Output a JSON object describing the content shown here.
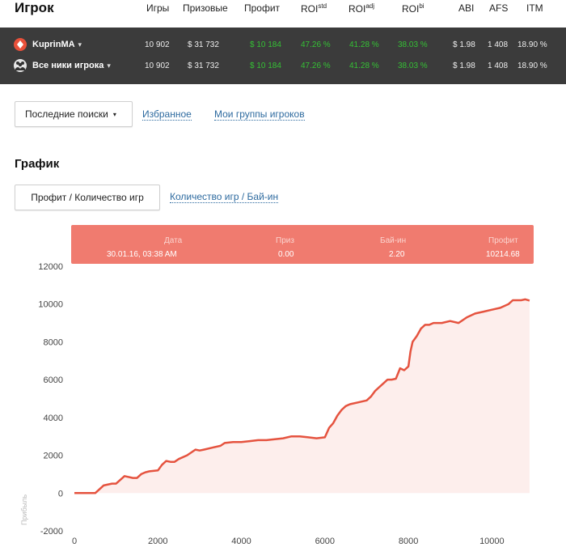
{
  "header": {
    "title": "Игрок",
    "columns": [
      {
        "label": "Игры",
        "sup": ""
      },
      {
        "label": "Призовые",
        "sup": ""
      },
      {
        "label": "Профит",
        "sup": ""
      },
      {
        "label": "ROI",
        "sup": "std"
      },
      {
        "label": "ROI",
        "sup": "adj"
      },
      {
        "label": "ROI",
        "sup": "bi"
      },
      {
        "label": "ABI",
        "sup": ""
      },
      {
        "label": "AFS",
        "sup": ""
      },
      {
        "label": "ITM",
        "sup": ""
      }
    ]
  },
  "rows": [
    {
      "name": "KuprinMA",
      "icon": "poker-icon",
      "games": "10 902",
      "prizes": "$ 31 732",
      "profit": "$ 10 184",
      "roi_std": "47.26 %",
      "roi_adj": "41.28 %",
      "roi_bi": "38.03 %",
      "abi": "$ 1.98",
      "afs": "1 408",
      "itm": "18.90 %"
    },
    {
      "name": "Все ники игрока",
      "icon": "group-icon",
      "games": "10 902",
      "prizes": "$ 31 732",
      "profit": "$ 10 184",
      "roi_std": "47.26 %",
      "roi_adj": "41.28 %",
      "roi_bi": "38.03 %",
      "abi": "$ 1.98",
      "afs": "1 408",
      "itm": "18.90 %"
    }
  ],
  "caret": "▾",
  "nav": {
    "recent": "Последние поиски",
    "favorites": "Избранное",
    "groups": "Мои группы игроков"
  },
  "graph": {
    "title": "График",
    "tab_active": "Профит / Количество игр",
    "tab_other": "Количество игр / Бай-ин"
  },
  "tooltip": {
    "date_h": "Дата",
    "date_v": "30.01.16, 03:38 AM",
    "prize_h": "Приз",
    "prize_v": "0.00",
    "buyin_h": "Бай-ин",
    "buyin_v": "2.20",
    "profit_h": "Профит",
    "profit_v": "10214.68"
  },
  "colors": {
    "line": "#e5533f",
    "area": "#fdeeec",
    "tooltip": "#f07b6f",
    "green": "#35c135"
  },
  "chart_data": {
    "type": "area",
    "ylabel": "Прибыль",
    "xlabel": "",
    "xlim": [
      0,
      11000
    ],
    "ylim": [
      -2000,
      12000
    ],
    "xticks": [
      0,
      2000,
      4000,
      6000,
      8000,
      10000
    ],
    "yticks": [
      -2000,
      0,
      2000,
      4000,
      6000,
      8000,
      10000,
      12000
    ],
    "series": [
      {
        "x": [
          0,
          300,
          500,
          600,
          700,
          900,
          1000,
          1100,
          1200,
          1400,
          1500,
          1600,
          1700,
          1800,
          2000,
          2100,
          2200,
          2300,
          2400,
          2500,
          2700,
          2900,
          3000,
          3100,
          3300,
          3500,
          3600,
          3800,
          4000,
          4200,
          4400,
          4600,
          4800,
          5000,
          5200,
          5400,
          5600,
          5800,
          6000,
          6100,
          6200,
          6300,
          6400,
          6500,
          6600,
          6800,
          7000,
          7100,
          7200,
          7300,
          7400,
          7500,
          7600,
          7700,
          7800,
          7900,
          8000,
          8050,
          8100,
          8200,
          8300,
          8400,
          8500,
          8600,
          8800,
          9000,
          9200,
          9400,
          9600,
          9800,
          10000,
          10200,
          10400,
          10500,
          10600,
          10700,
          10800,
          10902
        ],
        "y": [
          0,
          0,
          0,
          200,
          400,
          500,
          500,
          700,
          900,
          800,
          800,
          1000,
          1100,
          1150,
          1200,
          1500,
          1700,
          1650,
          1650,
          1800,
          2000,
          2300,
          2250,
          2300,
          2400,
          2500,
          2650,
          2700,
          2700,
          2750,
          2800,
          2800,
          2850,
          2900,
          3000,
          3000,
          2950,
          2900,
          2950,
          3450,
          3700,
          4100,
          4400,
          4600,
          4700,
          4800,
          4900,
          5100,
          5400,
          5600,
          5800,
          6000,
          6000,
          6050,
          6600,
          6500,
          6700,
          7500,
          8000,
          8300,
          8700,
          8900,
          8900,
          9000,
          9000,
          9100,
          9000,
          9300,
          9500,
          9600,
          9700,
          9800,
          10000,
          10200,
          10200,
          10200,
          10250,
          10184
        ]
      }
    ]
  }
}
